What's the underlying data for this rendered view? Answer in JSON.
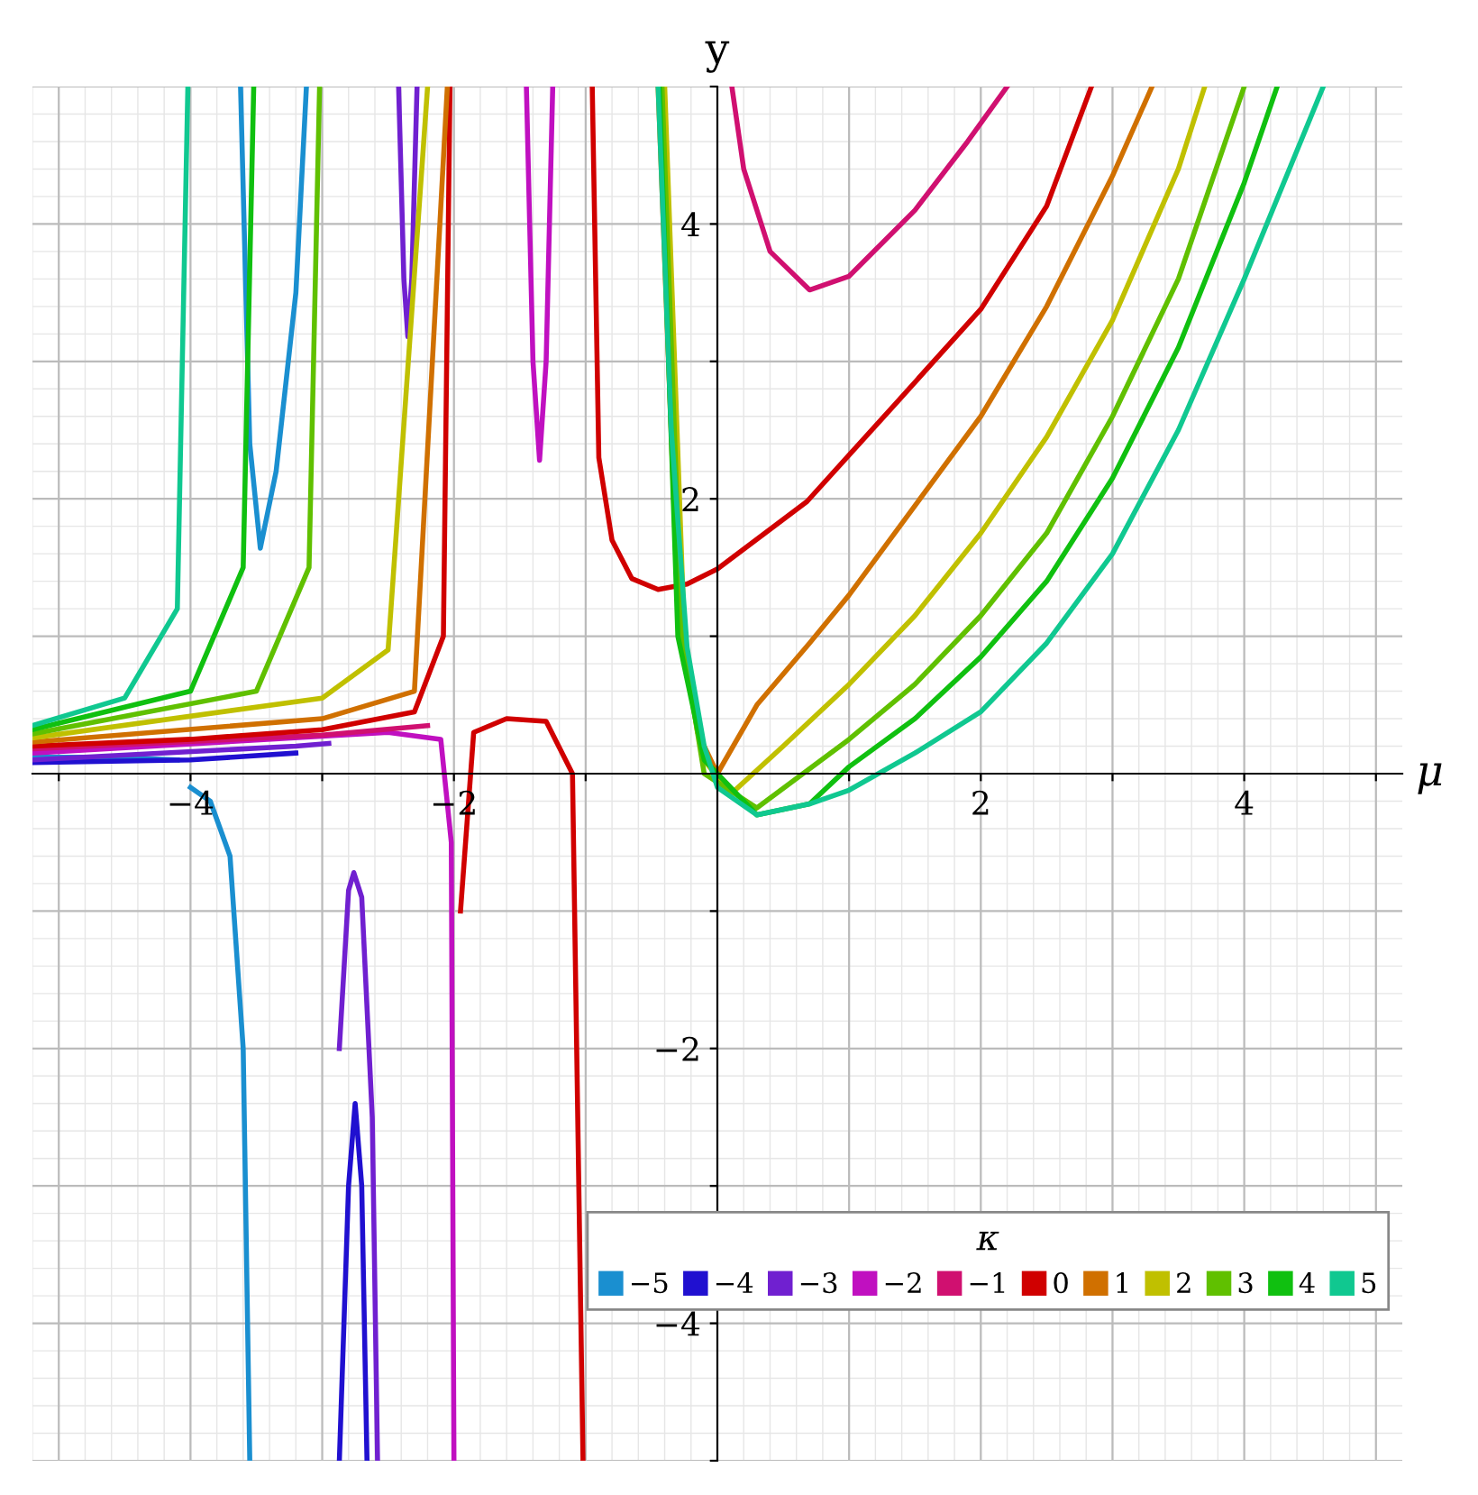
{
  "chart_data": {
    "type": "line",
    "xlabel": "μ",
    "ylabel": "y",
    "legend_title": "κ",
    "xlim": [
      -5.2,
      5.2
    ],
    "ylim": [
      -5,
      5
    ],
    "xticks": [
      {
        "value": -5,
        "label": null
      },
      -4,
      {
        "value": -3,
        "label": null
      },
      -2,
      {
        "value": -1,
        "label": null
      },
      {
        "value": 1,
        "label": null
      },
      2,
      {
        "value": 3,
        "label": null
      },
      4,
      {
        "value": 5,
        "label": null
      }
    ],
    "yticks": [
      {
        "value": -5,
        "label": null
      },
      -4,
      {
        "value": -3,
        "label": null
      },
      -2,
      {
        "value": -1,
        "label": null
      },
      {
        "value": 1,
        "label": null
      },
      2,
      {
        "value": 3,
        "label": null
      },
      4,
      {
        "value": 5,
        "label": null
      }
    ],
    "grid": true,
    "legend": "bottom right",
    "marker": "none",
    "line_style": "solid",
    "series": [
      {
        "name": "−5",
        "color": "#1a8fd0",
        "x": [
          -5.2,
          -4.6,
          -4.1,
          null,
          -3.62,
          -3.55,
          -3.47,
          -3.35,
          -3.2,
          -3.12,
          null,
          -4.0,
          -3.85,
          -3.7,
          -3.6,
          -3.55
        ],
        "values": [
          0.12,
          0.12,
          0.1,
          null,
          5,
          2.4,
          1.64,
          2.2,
          3.5,
          5,
          null,
          -0.1,
          -0.2,
          -0.6,
          -2,
          -5
        ]
      },
      {
        "name": "−4",
        "color": "#2010d0",
        "x": [
          -5.2,
          -4.0,
          -3.2,
          null,
          -2.87,
          -2.8,
          -2.75,
          -2.7,
          -2.66
        ],
        "values": [
          0.08,
          0.1,
          0.15,
          null,
          -5,
          -3,
          -2.4,
          -3,
          -5
        ]
      },
      {
        "name": "−3",
        "color": "#7020d0",
        "x": [
          -5.2,
          -3.2,
          -2.95,
          null,
          -2.42,
          -2.38,
          -2.35,
          -2.32,
          -2.28,
          null,
          -2.87,
          -2.8,
          -2.76,
          -2.7,
          -2.62,
          -2.58
        ],
        "values": [
          0.1,
          0.2,
          0.22,
          null,
          5,
          3.6,
          3.18,
          3.6,
          5,
          null,
          -2,
          -0.85,
          -0.72,
          -0.9,
          -2.5,
          -5
        ]
      },
      {
        "name": "−2",
        "color": "#c010c0",
        "x": [
          -5.2,
          -2.5,
          -2.1,
          -2.02,
          -2.0,
          null,
          -1.45,
          -1.4,
          -1.35,
          -1.3,
          -1.25
        ],
        "values": [
          0.15,
          0.3,
          0.25,
          -0.5,
          -5,
          null,
          5,
          3,
          2.28,
          3,
          5
        ]
      },
      {
        "name": "−1",
        "color": "#d01070",
        "x": [
          -5.2,
          -3.0,
          -2.2,
          null,
          0.11,
          0.2,
          0.4,
          0.7,
          1.0,
          1.5,
          1.9,
          2.2
        ],
        "values": [
          0.18,
          0.28,
          0.35,
          null,
          5,
          4.4,
          3.8,
          3.52,
          3.62,
          4.1,
          4.6,
          5
        ]
      },
      {
        "name": "0",
        "color": "#d00000",
        "x": [
          -5.2,
          -4.0,
          -3.0,
          -2.3,
          -2.08,
          -2.03,
          null,
          -1.95,
          -1.85,
          -1.6,
          -1.3,
          -1.1,
          -1.02,
          null,
          -0.95,
          -0.9,
          -0.8,
          -0.65,
          -0.45,
          -0.23,
          0,
          0.68,
          1.36,
          2.0,
          2.5,
          2.84
        ],
        "values": [
          0.2,
          0.25,
          0.32,
          0.45,
          1.0,
          5,
          null,
          -1,
          0.3,
          0.4,
          0.38,
          0,
          -5,
          null,
          5,
          2.3,
          1.7,
          1.42,
          1.34,
          1.38,
          1.49,
          1.98,
          2.7,
          3.38,
          4.13,
          5
        ]
      },
      {
        "name": "1",
        "color": "#d07000",
        "x": [
          -5.2,
          -3.0,
          -2.3,
          -2.05,
          null,
          -0.45,
          -0.3,
          -0.15,
          0,
          0.3,
          0.7,
          1.0,
          1.5,
          2.0,
          2.5,
          3.0,
          3.3
        ],
        "values": [
          0.23,
          0.4,
          0.6,
          5,
          null,
          5,
          1.2,
          0.3,
          0,
          0.5,
          0.95,
          1.3,
          1.95,
          2.6,
          3.4,
          4.35,
          5
        ]
      },
      {
        "name": "2",
        "color": "#c0c000",
        "x": [
          -5.2,
          -3.0,
          -2.5,
          -2.2,
          null,
          -0.4,
          -0.25,
          -0.1,
          0.1,
          0.5,
          1.0,
          1.5,
          2.0,
          2.5,
          3.0,
          3.5,
          3.7
        ],
        "values": [
          0.26,
          0.55,
          0.9,
          5,
          null,
          5,
          1.0,
          0.1,
          -0.15,
          0.2,
          0.65,
          1.15,
          1.75,
          2.45,
          3.3,
          4.4,
          5
        ]
      },
      {
        "name": "3",
        "color": "#60c000",
        "x": [
          -5.2,
          -3.5,
          -3.1,
          -3.02,
          null,
          -0.42,
          -0.27,
          -0.1,
          0.3,
          1.0,
          1.5,
          2.0,
          2.5,
          3.0,
          3.5,
          4.0
        ],
        "values": [
          0.29,
          0.6,
          1.5,
          5,
          null,
          5,
          1.0,
          0.0,
          -0.25,
          0.25,
          0.65,
          1.15,
          1.75,
          2.6,
          3.6,
          5
        ]
      },
      {
        "name": "4",
        "color": "#10c010",
        "x": [
          -5.2,
          -4.0,
          -3.6,
          -3.52,
          null,
          -0.44,
          -0.3,
          -0.1,
          0.3,
          0.7,
          1.0,
          1.5,
          2.0,
          2.5,
          3.0,
          3.5,
          4.0,
          4.25
        ],
        "values": [
          0.32,
          0.6,
          1.5,
          5,
          null,
          5,
          1.0,
          0.1,
          -0.3,
          -0.22,
          0.05,
          0.4,
          0.85,
          1.4,
          2.15,
          3.1,
          4.3,
          5
        ]
      },
      {
        "name": "5",
        "color": "#10c890",
        "x": [
          -5.2,
          -4.5,
          -4.1,
          -4.02,
          null,
          -0.45,
          -0.35,
          -0.23,
          -0.1,
          0,
          0.3,
          0.7,
          1.0,
          1.5,
          2.0,
          2.5,
          3.0,
          3.5,
          4.0,
          4.6
        ],
        "values": [
          0.35,
          0.55,
          1.2,
          5,
          null,
          5,
          2.5,
          0.92,
          0.2,
          -0.1,
          -0.3,
          -0.22,
          -0.12,
          0.15,
          0.45,
          0.95,
          1.6,
          2.5,
          3.6,
          5
        ]
      }
    ]
  }
}
